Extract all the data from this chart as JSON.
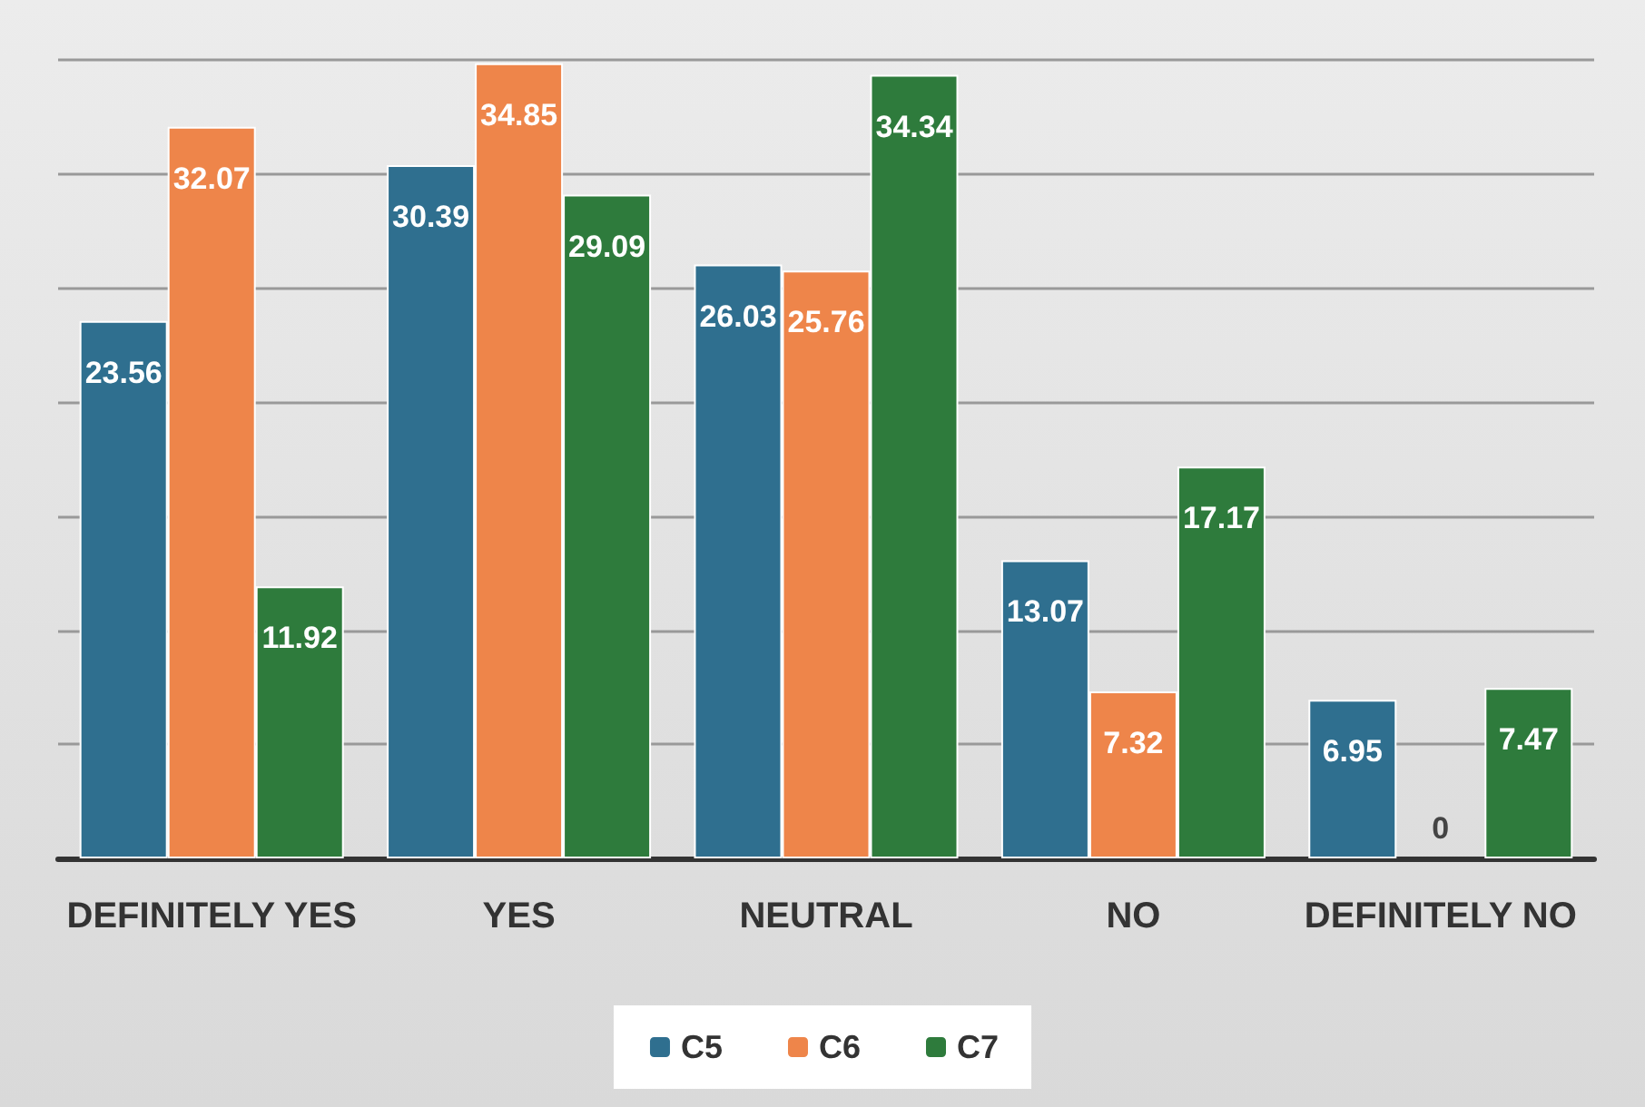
{
  "chart_data": {
    "type": "bar",
    "categories": [
      "DEFINITELY YES",
      "YES",
      "NEUTRAL",
      "NO",
      "DEFINITELY NO"
    ],
    "series": [
      {
        "name": "C5",
        "color": "#2f6f8f",
        "values": [
          23.56,
          30.39,
          26.03,
          13.07,
          6.95
        ]
      },
      {
        "name": "C6",
        "color": "#ee854a",
        "values": [
          32.07,
          34.85,
          25.76,
          7.32,
          0
        ]
      },
      {
        "name": "C7",
        "color": "#2e7b3c",
        "values": [
          11.92,
          29.09,
          34.34,
          17.17,
          7.47
        ]
      }
    ],
    "ylim": [
      0,
      35
    ],
    "yticks": [
      {
        "value": 0,
        "label": null
      },
      {
        "value": 5,
        "label": null
      },
      {
        "value": 10,
        "label": null
      },
      {
        "value": 15,
        "label": null
      },
      {
        "value": 20,
        "label": null
      },
      {
        "value": 25,
        "label": null
      },
      {
        "value": 30,
        "label": null
      },
      {
        "value": 35,
        "label": null
      }
    ],
    "tick_labels": "x",
    "grid": "y",
    "legend": "bottom",
    "data_labels": true
  }
}
